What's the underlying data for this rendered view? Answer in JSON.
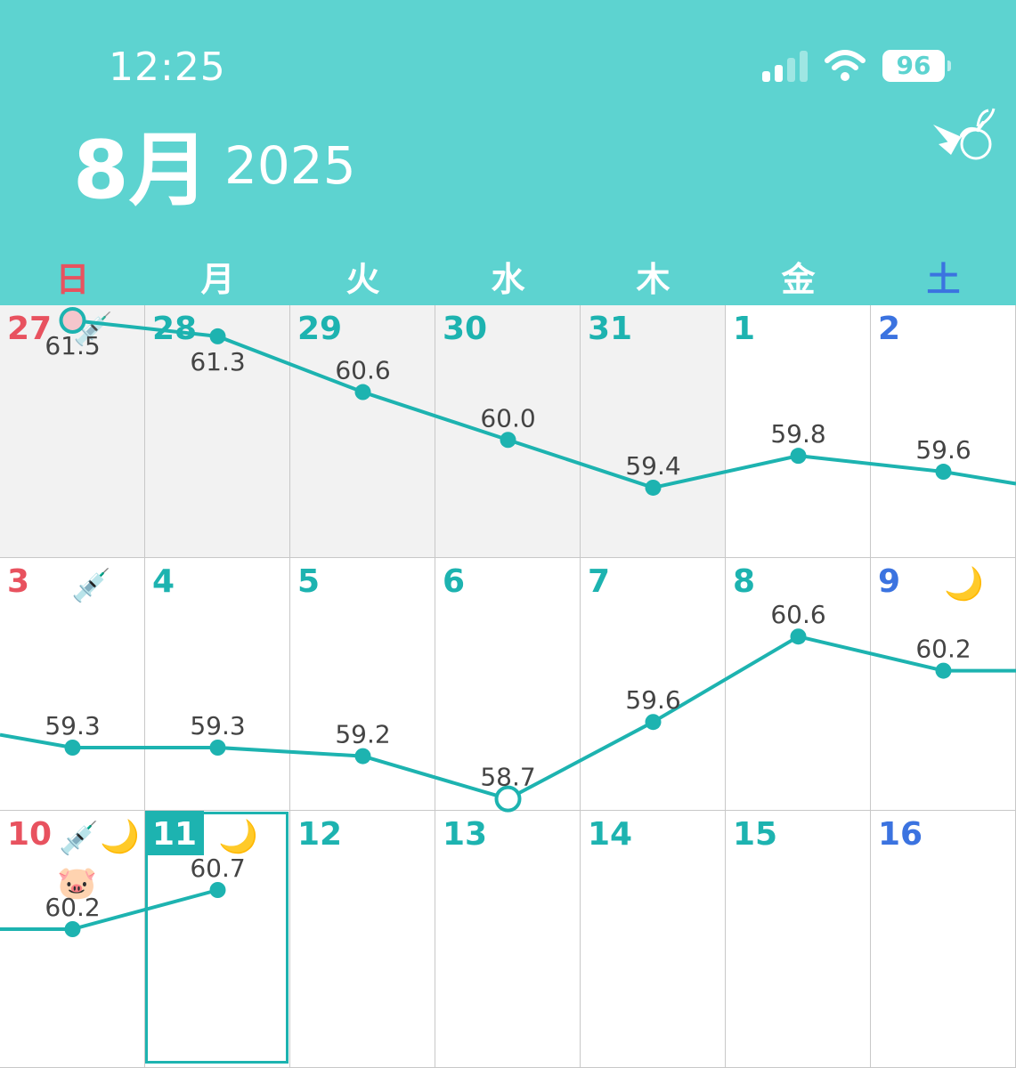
{
  "status_bar": {
    "time": "12:25",
    "battery": "96"
  },
  "header": {
    "month": "8月",
    "year": "2025"
  },
  "weekdays": [
    "日",
    "月",
    "火",
    "水",
    "木",
    "金",
    "土"
  ],
  "weeks": [
    {
      "days": [
        "27",
        "28",
        "29",
        "30",
        "31",
        "1",
        "2"
      ]
    },
    {
      "days": [
        "3",
        "4",
        "5",
        "6",
        "7",
        "8",
        "9"
      ]
    },
    {
      "days": [
        "10",
        "11",
        "12",
        "13",
        "14",
        "15",
        "16"
      ]
    }
  ],
  "selected_day": "11",
  "markers": {
    "injection": [
      "27",
      "3",
      "10"
    ],
    "period": [
      "9",
      "10",
      "11"
    ],
    "pig": [
      "10"
    ]
  },
  "colors": {
    "header": "#5dd3d0",
    "accent": "#1db3b0",
    "sunday": "#e8525f",
    "saturday": "#3b73e0",
    "previous_month_bg": "#f2f2f2"
  },
  "chart_data": {
    "type": "line",
    "weeks": [
      {
        "x": [
          "27",
          "28",
          "29",
          "30",
          "31",
          "1",
          "2"
        ],
        "y": [
          61.5,
          61.3,
          60.6,
          60.0,
          59.4,
          59.8,
          59.6
        ],
        "labels": [
          "61.5",
          "61.3",
          "60.6",
          "60.0",
          "59.4",
          "59.8",
          "59.6"
        ]
      },
      {
        "x": [
          "3",
          "4",
          "5",
          "6",
          "7",
          "8",
          "9"
        ],
        "y": [
          59.3,
          59.3,
          59.2,
          58.7,
          59.6,
          60.6,
          60.2
        ],
        "labels": [
          "59.3",
          "59.3",
          "59.2",
          "58.7",
          "59.6",
          "60.6",
          "60.2"
        ]
      },
      {
        "x": [
          "10",
          "11"
        ],
        "y": [
          60.2,
          60.7
        ],
        "labels": [
          "60.2",
          "60.7"
        ]
      }
    ],
    "hollow_points": [
      "27",
      "6"
    ]
  }
}
